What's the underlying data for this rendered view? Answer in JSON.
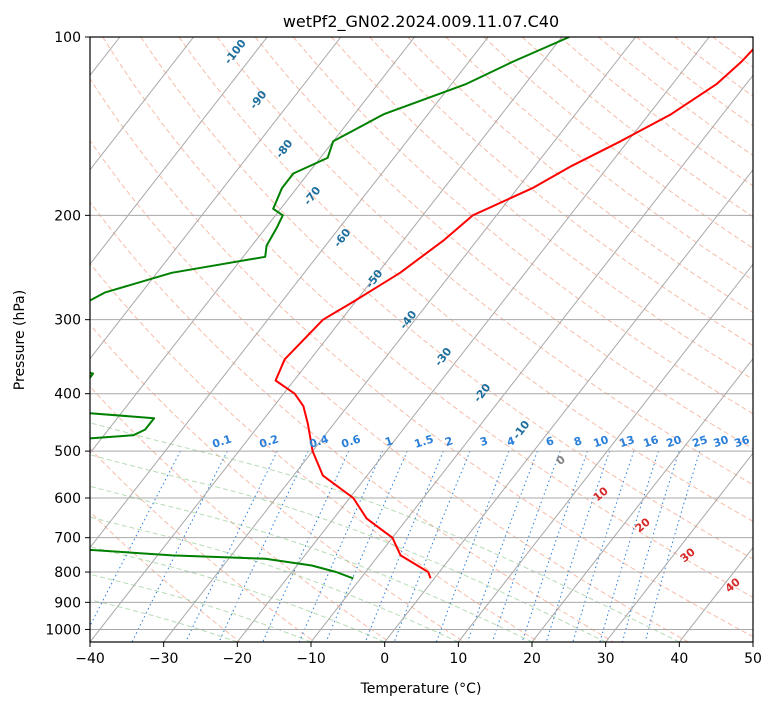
{
  "title": "wetPf2_GN02.2024.009.11.07.C40",
  "chart_data": {
    "type": "line",
    "title": "wetPf2_GN02.2024.009.11.07.C40",
    "xlabel": "Temperature (°C)",
    "ylabel": "Pressure (hPa)",
    "xlim": [
      -40,
      50
    ],
    "ylim": [
      1050,
      100
    ],
    "y_scale": "log",
    "grid": true,
    "x_ticks": [
      -40,
      -30,
      -20,
      -10,
      0,
      10,
      20,
      30,
      40,
      50
    ],
    "y_ticks": [
      100,
      200,
      300,
      400,
      500,
      600,
      700,
      800,
      900,
      1000
    ],
    "x_tick_labels": [
      "−40",
      "−30",
      "−20",
      "−10",
      "0",
      "10",
      "20",
      "30",
      "40",
      "50"
    ],
    "y_tick_labels": [
      "100",
      "200",
      "300",
      "400",
      "500",
      "600",
      "700",
      "800",
      "900",
      "1000"
    ],
    "series": [
      {
        "color": "#ff0000",
        "points": [
          [
            100,
            -12.5
          ],
          [
            110,
            -13
          ],
          [
            120,
            -14
          ],
          [
            135,
            -17
          ],
          [
            150,
            -21
          ],
          [
            165,
            -25
          ],
          [
            180,
            -28
          ],
          [
            200,
            -33.2
          ],
          [
            220,
            -34.5
          ],
          [
            250,
            -37
          ],
          [
            280,
            -40.3
          ],
          [
            300,
            -42.5
          ],
          [
            350,
            -43.5
          ],
          [
            380,
            -42.5
          ],
          [
            400,
            -38.5
          ],
          [
            420,
            -36
          ],
          [
            450,
            -33.5
          ],
          [
            500,
            -30
          ],
          [
            550,
            -26
          ],
          [
            600,
            -19.5
          ],
          [
            650,
            -15.5
          ],
          [
            700,
            -10
          ],
          [
            750,
            -7
          ],
          [
            800,
            -1.5
          ],
          [
            820,
            -0.5
          ]
        ]
      },
      {
        "color": "#008000",
        "points": [
          [
            100,
            -39
          ],
          [
            110,
            -44
          ],
          [
            120,
            -48
          ],
          [
            135,
            -56
          ],
          [
            150,
            -60
          ],
          [
            160,
            -59
          ],
          [
            170,
            -62
          ],
          [
            180,
            -62
          ],
          [
            195,
            -61
          ],
          [
            200,
            -59
          ],
          [
            210,
            -58.5
          ],
          [
            225,
            -58
          ],
          [
            235,
            -57
          ],
          [
            250,
            -68
          ],
          [
            270,
            -75
          ],
          [
            300,
            -79
          ],
          [
            320,
            -80
          ],
          [
            350,
            -77
          ],
          [
            370,
            -68
          ],
          [
            385,
            -68
          ],
          [
            400,
            -70
          ],
          [
            410,
            -72
          ],
          [
            420,
            -80
          ],
          [
            430,
            -66
          ],
          [
            440,
            -55
          ],
          [
            460,
            -55
          ],
          [
            470,
            -56
          ],
          [
            490,
            -75
          ],
          [
            510,
            -101
          ],
          [
            525,
            -108
          ],
          [
            535,
            -106
          ],
          [
            550,
            -95
          ],
          [
            575,
            -83
          ],
          [
            600,
            -81
          ],
          [
            620,
            -74
          ],
          [
            650,
            -62
          ],
          [
            680,
            -55
          ],
          [
            690,
            -56
          ],
          [
            700,
            -73
          ],
          [
            710,
            -68
          ],
          [
            750,
            -38
          ],
          [
            760,
            -25
          ],
          [
            780,
            -18
          ],
          [
            800,
            -14
          ],
          [
            820,
            -11
          ]
        ]
      }
    ],
    "dry_adiabat_labels": [
      "-100",
      "-90",
      "-80",
      "-70",
      "-60",
      "-50",
      "-40",
      "-30",
      "-20",
      "-10"
    ],
    "mixing_ratio_labels": [
      "0.1",
      "0.2",
      "0.4",
      "0.6",
      "1",
      "1.5",
      "2",
      "3",
      "4",
      "6",
      "8",
      "10",
      "13",
      "16",
      "20",
      "25",
      "30",
      "36"
    ],
    "moist_adiabat_labels": [
      "0",
      "10",
      "20",
      "30",
      "40"
    ]
  }
}
